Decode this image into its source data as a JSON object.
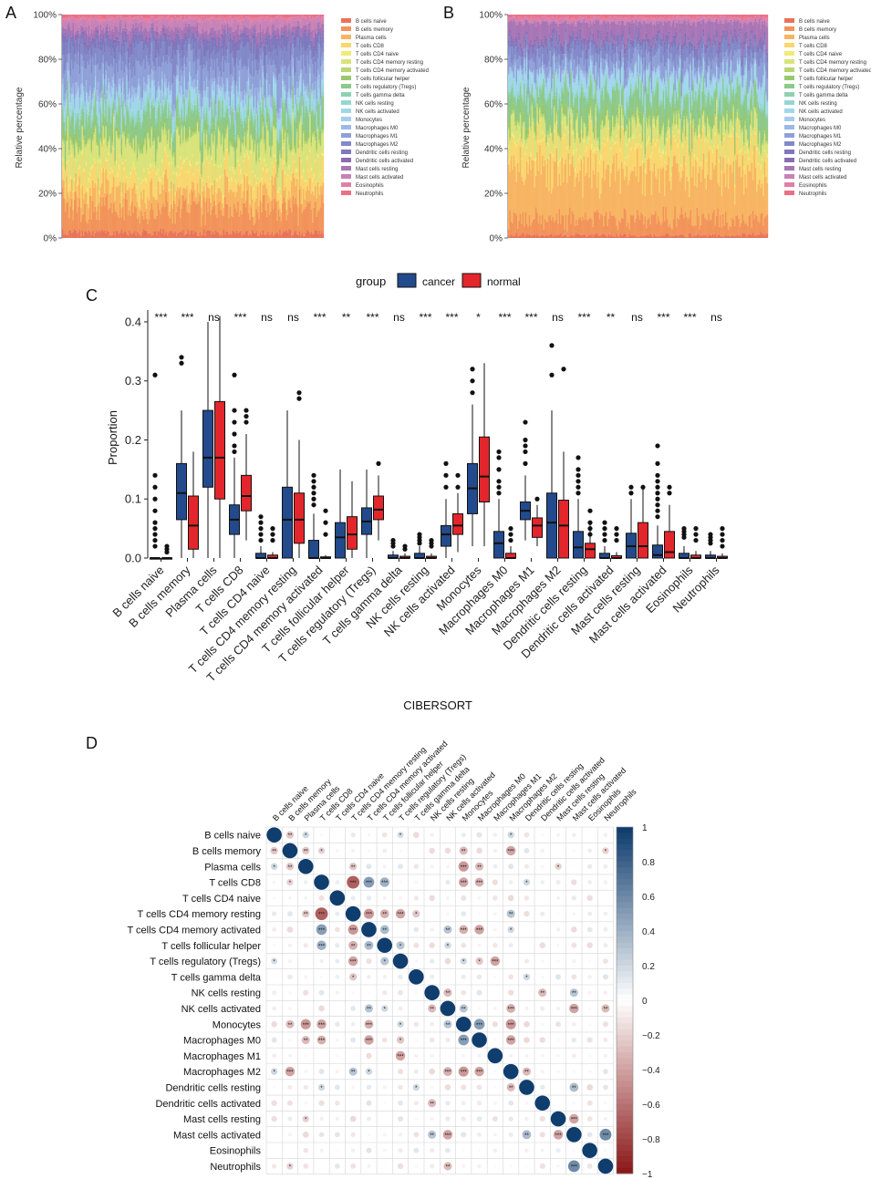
{
  "panels": {
    "A": "A",
    "B": "B",
    "C": "C",
    "D": "D"
  },
  "stack_ylabel": "Relative percentage",
  "stack_ticks": [
    "0%",
    "20%",
    "40%",
    "60%",
    "80%",
    "100%"
  ],
  "cell_types": [
    "B cells naive",
    "B cells memory",
    "Plasma cells",
    "T cells CD8",
    "T cells CD4 naive",
    "T cells CD4 memory resting",
    "T cells CD4 memory activated",
    "T cells follicular helper",
    "T cells regulatory (Tregs)",
    "T cells gamma delta",
    "NK cells resting",
    "NK cells activated",
    "Monocytes",
    "Macrophages M0",
    "Macrophages M1",
    "Macrophages M2",
    "Dendritic cells resting",
    "Dendritic cells activated",
    "Mast cells resting",
    "Mast cells activated",
    "Eosinophils",
    "Neutrophils"
  ],
  "colors": {
    "palette": [
      "#e8735a",
      "#f2935a",
      "#f7b462",
      "#f9d66e",
      "#f4ea78",
      "#d9e37a",
      "#b9d672",
      "#98c86c",
      "#8cc98a",
      "#8fd0b0",
      "#95d6d2",
      "#9fd8ea",
      "#a6cdee",
      "#9eb8e6",
      "#8fa0d8",
      "#8289c8",
      "#7f78bd",
      "#8a6cb3",
      "#a875b5",
      "#c882b6",
      "#e07fa8",
      "#ec6f85"
    ],
    "cancer": "#234a8c",
    "normal": "#e3262b",
    "corr_pos": "#0f3d6e",
    "corr_neg": "#8b1a1a"
  },
  "legend_group": {
    "title": "group",
    "cancer": "cancer",
    "normal": "normal"
  },
  "chart_data": [
    {
      "id": "A",
      "type": "bar",
      "stacked": true,
      "description_from_image": "per-sample stacked relative immune fractions, cancer samples",
      "ylabel": "Relative percentage",
      "ylim": [
        0,
        100
      ],
      "series_order": "cell_types",
      "mean_fraction_percent": [
        2,
        9,
        7,
        7,
        1,
        10,
        1,
        3,
        6,
        1,
        2,
        4,
        1,
        3,
        8,
        6,
        4,
        1,
        3,
        3,
        1,
        1
      ]
    },
    {
      "id": "B",
      "type": "bar",
      "stacked": true,
      "description_from_image": "per-sample stacked relative immune fractions, normal samples",
      "ylabel": "Relative percentage",
      "ylim": [
        0,
        100
      ],
      "series_order": "cell_types",
      "mean_fraction_percent": [
        1,
        6,
        18,
        10,
        1,
        6,
        1,
        3,
        8,
        1,
        1,
        5,
        1,
        1,
        5,
        5,
        2,
        1,
        6,
        1,
        1,
        1
      ]
    },
    {
      "id": "C",
      "type": "box",
      "title": "",
      "xlabel": "CIBERSORT",
      "ylabel": "Proportion",
      "ylim": [
        0,
        0.42
      ],
      "yticks": [
        "0.0",
        "0.1",
        "0.2",
        "0.3",
        "0.4"
      ],
      "categories": [
        "B cells naive",
        "B cells memory",
        "Plasma cells",
        "T cells CD8",
        "T cells CD4 naive",
        "T cells CD4 memory resting",
        "T cells CD4 memory activated",
        "T cells follicular helper",
        "T cells regulatory (Tregs)",
        "T cells gamma delta",
        "NK cells resting",
        "NK cells activated",
        "Monocytes",
        "Macrophages M0",
        "Macrophages M1",
        "Macrophages M2",
        "Dendritic cells resting",
        "Dendritic cells activated",
        "Mast cells resting",
        "Mast cells activated",
        "Eosinophils",
        "Neutrophils"
      ],
      "significance": [
        "***",
        "***",
        "ns",
        "***",
        "ns",
        "ns",
        "***",
        "**",
        "***",
        "ns",
        "***",
        "***",
        "*",
        "***",
        "***",
        "ns",
        "***",
        "**",
        "ns",
        "***",
        "***",
        "ns"
      ],
      "series": [
        {
          "name": "cancer",
          "q1": [
            0.0,
            0.065,
            0.12,
            0.04,
            0.0,
            0.0,
            0.0,
            0.0,
            0.04,
            0.0,
            0.0,
            0.02,
            0.075,
            0.0,
            0.065,
            0.0,
            0.0,
            0.0,
            0.0,
            0.0,
            0.0,
            0.0
          ],
          "med": [
            0.0,
            0.11,
            0.17,
            0.065,
            0.0,
            0.065,
            0.0,
            0.035,
            0.062,
            0.0,
            0.0,
            0.04,
            0.118,
            0.025,
            0.08,
            0.06,
            0.018,
            0.0,
            0.02,
            0.005,
            0.0,
            0.0
          ],
          "q3": [
            0.0,
            0.16,
            0.25,
            0.09,
            0.008,
            0.12,
            0.03,
            0.06,
            0.085,
            0.005,
            0.008,
            0.055,
            0.16,
            0.045,
            0.095,
            0.11,
            0.045,
            0.008,
            0.042,
            0.022,
            0.008,
            0.005
          ],
          "wlo": [
            0.0,
            0.0,
            0.0,
            0.0,
            0.0,
            0.0,
            0.0,
            0.0,
            0.0,
            0.0,
            0.0,
            0.0,
            0.02,
            0.0,
            0.03,
            0.0,
            0.0,
            0.0,
            0.0,
            0.0,
            0.0,
            0.0
          ],
          "whi": [
            0.0,
            0.25,
            0.4,
            0.17,
            0.02,
            0.25,
            0.075,
            0.15,
            0.15,
            0.012,
            0.02,
            0.1,
            0.26,
            0.1,
            0.14,
            0.25,
            0.1,
            0.02,
            0.1,
            0.055,
            0.02,
            0.012
          ],
          "outliers": [
            [
              0.31,
              0.14,
              0.12,
              0.1,
              0.08,
              0.06,
              0.05,
              0.04,
              0.03,
              0.02
            ],
            [
              0.34,
              0.33
            ],
            [],
            [
              0.31,
              0.25,
              0.23,
              0.21,
              0.19,
              0.18
            ],
            [
              0.07,
              0.06,
              0.05,
              0.04,
              0.03
            ],
            [],
            [
              0.14,
              0.13,
              0.12,
              0.11,
              0.1,
              0.09
            ],
            [],
            [],
            [
              0.03,
              0.025,
              0.02
            ],
            [
              0.04,
              0.035,
              0.03,
              0.025
            ],
            [
              0.16,
              0.14,
              0.12
            ],
            [
              0.32,
              0.3,
              0.28
            ],
            [
              0.18,
              0.17,
              0.15,
              0.13,
              0.12,
              0.11
            ],
            [
              0.23,
              0.2,
              0.19,
              0.18,
              0.16
            ],
            [
              0.36,
              0.31
            ],
            [
              0.17,
              0.15,
              0.14,
              0.13,
              0.12,
              0.11
            ],
            [
              0.06,
              0.05,
              0.04,
              0.03
            ],
            [
              0.12,
              0.11
            ],
            [
              0.19,
              0.16,
              0.14,
              0.13,
              0.12,
              0.11,
              0.1,
              0.09,
              0.08,
              0.07
            ],
            [
              0.05,
              0.045,
              0.04,
              0.035
            ],
            [
              0.04,
              0.035,
              0.03,
              0.025
            ]
          ]
        },
        {
          "name": "normal",
          "q1": [
            0.0,
            0.015,
            0.1,
            0.08,
            0.0,
            0.025,
            0.0,
            0.015,
            0.065,
            0.0,
            0.0,
            0.04,
            0.095,
            0.0,
            0.035,
            0.0,
            0.0,
            0.0,
            0.0,
            0.0,
            0.0,
            0.0
          ],
          "med": [
            0.0,
            0.055,
            0.17,
            0.105,
            0.0,
            0.065,
            0.0,
            0.04,
            0.082,
            0.0,
            0.0,
            0.055,
            0.138,
            0.0,
            0.055,
            0.055,
            0.015,
            0.0,
            0.02,
            0.01,
            0.0,
            0.0
          ],
          "q3": [
            0.0,
            0.105,
            0.265,
            0.14,
            0.005,
            0.11,
            0.002,
            0.07,
            0.105,
            0.003,
            0.003,
            0.075,
            0.205,
            0.008,
            0.068,
            0.098,
            0.025,
            0.004,
            0.06,
            0.045,
            0.005,
            0.003
          ],
          "wlo": [
            0.0,
            0.0,
            0.0,
            0.03,
            0.0,
            0.0,
            0.0,
            0.0,
            0.03,
            0.0,
            0.0,
            0.01,
            0.02,
            0.0,
            0.02,
            0.0,
            0.0,
            0.0,
            0.0,
            0.0,
            0.0,
            0.0
          ],
          "whi": [
            0.0,
            0.18,
            0.41,
            0.21,
            0.01,
            0.2,
            0.005,
            0.13,
            0.14,
            0.008,
            0.008,
            0.11,
            0.33,
            0.02,
            0.09,
            0.18,
            0.06,
            0.01,
            0.12,
            0.09,
            0.012,
            0.008
          ],
          "outliers": [
            [
              0.02,
              0.015,
              0.01
            ],
            [],
            [],
            [
              0.25,
              0.24,
              0.23
            ],
            [
              0.05,
              0.04,
              0.03
            ],
            [
              0.28,
              0.27
            ],
            [
              0.08,
              0.06,
              0.04
            ],
            [],
            [
              0.16
            ],
            [
              0.02,
              0.015
            ],
            [
              0.03,
              0.025,
              0.02
            ],
            [
              0.14,
              0.12
            ],
            [],
            [
              0.05,
              0.04,
              0.03
            ],
            [
              0.1
            ],
            [
              0.32
            ],
            [
              0.08,
              0.06,
              0.05,
              0.04
            ],
            [
              0.05,
              0.04,
              0.03
            ],
            [
              0.12
            ],
            [
              0.12,
              0.11
            ],
            [
              0.05,
              0.04,
              0.03
            ],
            [
              0.05,
              0.04,
              0.03,
              0.02
            ]
          ]
        }
      ]
    },
    {
      "id": "D",
      "type": "heatmap",
      "subtype": "correlation-dot-matrix",
      "labels": [
        "B cells naive",
        "B cells memory",
        "Plasma cells",
        "T cells CD8",
        "T cells CD4 naive",
        "T cells CD4 memory resting",
        "T cells CD4 memory activated",
        "T cells follicular helper",
        "T cells regulatory (Tregs)",
        "T cells gamma delta",
        "NK cells resting",
        "NK cells activated",
        "Monocytes",
        "Macrophages M0",
        "Macrophages M1",
        "Macrophages M2",
        "Dendritic cells resting",
        "Dendritic cells activated",
        "Mast cells resting",
        "Mast cells activated",
        "Eosinophils",
        "Neutrophils"
      ],
      "colorbar_ticks": [
        "1",
        "0.8",
        "0.6",
        "0.4",
        "0.2",
        "0",
        "−0.2",
        "−0.4",
        "−0.6",
        "−0.8",
        "−1"
      ],
      "vrange": [
        -1,
        1
      ],
      "entries": [
        {
          "r": 0,
          "c": 1,
          "v": -0.25,
          "s": "**"
        },
        {
          "r": 0,
          "c": 2,
          "v": 0.2,
          "s": "*"
        },
        {
          "r": 0,
          "c": 8,
          "v": 0.18,
          "s": "*"
        },
        {
          "r": 0,
          "c": 15,
          "v": 0.2,
          "s": "*"
        },
        {
          "r": 1,
          "c": 3,
          "v": -0.2,
          "s": "*"
        },
        {
          "r": 1,
          "c": 2,
          "v": -0.25,
          "s": "**"
        },
        {
          "r": 1,
          "c": 12,
          "v": -0.3,
          "s": "**"
        },
        {
          "r": 1,
          "c": 15,
          "v": -0.4,
          "s": "***"
        },
        {
          "r": 1,
          "c": 21,
          "v": -0.2,
          "s": "*"
        },
        {
          "r": 2,
          "c": 5,
          "v": -0.25,
          "s": "**"
        },
        {
          "r": 2,
          "c": 12,
          "v": -0.45,
          "s": "***"
        },
        {
          "r": 2,
          "c": 13,
          "v": -0.3,
          "s": "**"
        },
        {
          "r": 2,
          "c": 18,
          "v": -0.2,
          "s": "*"
        },
        {
          "r": 3,
          "c": 5,
          "v": -0.7,
          "s": "***"
        },
        {
          "r": 3,
          "c": 6,
          "v": 0.5,
          "s": "***"
        },
        {
          "r": 3,
          "c": 7,
          "v": 0.4,
          "s": "***"
        },
        {
          "r": 3,
          "c": 12,
          "v": -0.4,
          "s": "***"
        },
        {
          "r": 3,
          "c": 13,
          "v": -0.35,
          "s": "***"
        },
        {
          "r": 3,
          "c": 16,
          "v": 0.2,
          "s": "*"
        },
        {
          "r": 5,
          "c": 6,
          "v": -0.45,
          "s": "***"
        },
        {
          "r": 5,
          "c": 7,
          "v": -0.35,
          "s": "**"
        },
        {
          "r": 5,
          "c": 8,
          "v": -0.4,
          "s": "***"
        },
        {
          "r": 5,
          "c": 9,
          "v": -0.25,
          "s": "*"
        },
        {
          "r": 5,
          "c": 15,
          "v": 0.3,
          "s": "**"
        },
        {
          "r": 6,
          "c": 7,
          "v": 0.35,
          "s": "**"
        },
        {
          "r": 6,
          "c": 11,
          "v": 0.3,
          "s": "**"
        },
        {
          "r": 6,
          "c": 12,
          "v": -0.35,
          "s": "***"
        },
        {
          "r": 6,
          "c": 13,
          "v": -0.4,
          "s": "***"
        },
        {
          "r": 6,
          "c": 15,
          "v": 0.2,
          "s": "*"
        },
        {
          "r": 7,
          "c": 8,
          "v": 0.3,
          "s": "*"
        },
        {
          "r": 7,
          "c": 11,
          "v": 0.2,
          "s": "*"
        },
        {
          "r": 8,
          "c": 13,
          "v": -0.25,
          "s": "*"
        },
        {
          "r": 8,
          "c": 14,
          "v": -0.4,
          "s": "***"
        },
        {
          "r": 8,
          "c": 12,
          "v": 0.2,
          "s": "*"
        },
        {
          "r": 9,
          "c": 16,
          "v": 0.2,
          "s": "*"
        },
        {
          "r": 10,
          "c": 11,
          "v": -0.3,
          "s": "**"
        },
        {
          "r": 10,
          "c": 17,
          "v": -0.3,
          "s": "**"
        },
        {
          "r": 10,
          "c": 19,
          "v": 0.3,
          "s": "**"
        },
        {
          "r": 11,
          "c": 12,
          "v": 0.3,
          "s": "**"
        },
        {
          "r": 11,
          "c": 15,
          "v": -0.35,
          "s": "***"
        },
        {
          "r": 11,
          "c": 19,
          "v": -0.4,
          "s": "***"
        },
        {
          "r": 11,
          "c": 21,
          "v": -0.3,
          "s": "**"
        },
        {
          "r": 12,
          "c": 13,
          "v": 0.5,
          "s": "***"
        },
        {
          "r": 12,
          "c": 15,
          "v": -0.45,
          "s": "***"
        },
        {
          "r": 13,
          "c": 15,
          "v": -0.4,
          "s": "***"
        },
        {
          "r": 15,
          "c": 16,
          "v": -0.3,
          "s": "**"
        },
        {
          "r": 18,
          "c": 19,
          "v": -0.4,
          "s": "***"
        },
        {
          "r": 19,
          "c": 21,
          "v": 0.6,
          "s": "***"
        },
        {
          "r": 16,
          "c": 19,
          "v": 0.35,
          "s": "**"
        }
      ]
    }
  ]
}
